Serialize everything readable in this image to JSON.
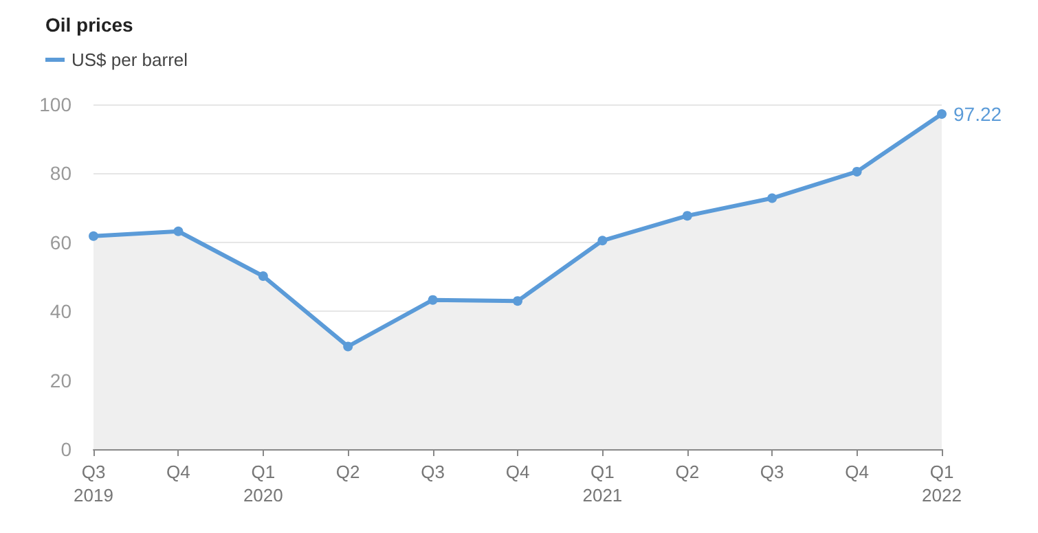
{
  "chart_data": {
    "type": "area",
    "title": "Oil prices",
    "categories": [
      "Q3\n2019",
      "Q4",
      "Q1\n2020",
      "Q2",
      "Q3",
      "Q4",
      "Q1\n2021",
      "Q2",
      "Q3",
      "Q4",
      "Q1\n2022"
    ],
    "series": [
      {
        "name": "US$ per barrel",
        "color": "#5b9bd8",
        "values": [
          61.8,
          63.2,
          50.2,
          29.8,
          43.3,
          43,
          60.5,
          67.7,
          72.8,
          80.5,
          97.22
        ],
        "value_labels": [
          null,
          null,
          null,
          null,
          null,
          null,
          null,
          null,
          null,
          null,
          "97.22"
        ]
      }
    ],
    "ylim": [
      0,
      100
    ],
    "yticks": [
      0,
      20,
      40,
      60,
      80,
      100
    ],
    "grid": "y",
    "legend": "top left",
    "marker": "circle"
  }
}
